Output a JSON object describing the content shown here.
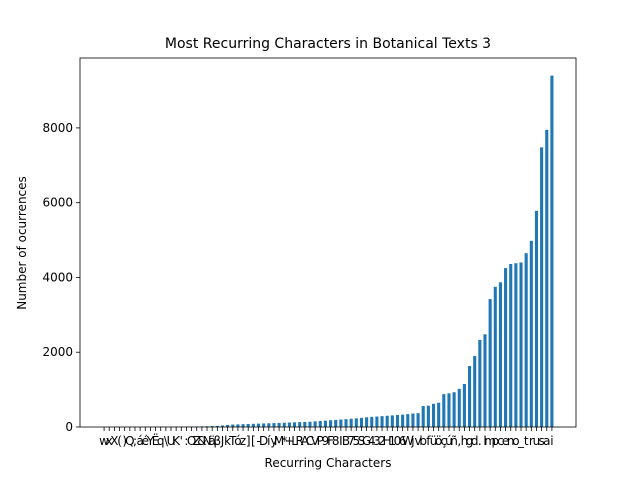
{
  "chart_data": {
    "type": "bar",
    "title": "Most Recurring Characters in Botanical Texts 3",
    "xlabel": "Recurring Characters",
    "ylabel": "Number of ocurrences",
    "categories": [
      "w",
      "x",
      "X",
      "(",
      ")",
      "Q",
      ";",
      "á",
      "é",
      "Y",
      "Ë",
      "q",
      "\\",
      "U",
      "K",
      "'",
      ":",
      "O",
      "Z",
      "&",
      "N",
      "ä",
      "β",
      "J",
      "k",
      "T",
      "ó",
      "z",
      "]",
      "[",
      "-",
      "D",
      "í",
      "y",
      "M",
      "*",
      "+",
      "L",
      "R",
      "A",
      "C",
      "V",
      "P",
      "9",
      "F",
      "8",
      "I",
      "B",
      "7",
      "5",
      "S",
      "G",
      "4",
      "3",
      "2",
      "H",
      "1",
      "0",
      "6",
      "W",
      "j",
      "v",
      "b",
      "f",
      "ü",
      "ö",
      "ç",
      "ú",
      "ñ",
      ",",
      "h",
      "g",
      "d",
      ".",
      "l",
      "m",
      "p",
      "c",
      "e",
      "n",
      "o",
      "_",
      "t",
      "r",
      "u",
      "s",
      "a",
      "i"
    ],
    "values": [
      1,
      1,
      1,
      2,
      2,
      2,
      3,
      3,
      4,
      4,
      5,
      5,
      6,
      7,
      8,
      9,
      10,
      12,
      14,
      16,
      20,
      24,
      30,
      40,
      55,
      65,
      70,
      75,
      80,
      85,
      90,
      95,
      100,
      105,
      110,
      115,
      120,
      125,
      130,
      135,
      140,
      150,
      160,
      170,
      180,
      190,
      200,
      210,
      220,
      230,
      245,
      260,
      270,
      280,
      290,
      300,
      310,
      320,
      330,
      345,
      360,
      370,
      560,
      570,
      620,
      650,
      880,
      900,
      930,
      1020,
      1150,
      1630,
      1900,
      2330,
      2480,
      3420,
      3750,
      3870,
      4250,
      4360,
      4380,
      4400,
      4650,
      4980,
      5780,
      7480,
      7950,
      9400
    ],
    "color": "#1f77b4",
    "ylim": [
      0,
      9870
    ],
    "yticks": [
      0,
      2000,
      4000,
      6000,
      8000
    ]
  }
}
